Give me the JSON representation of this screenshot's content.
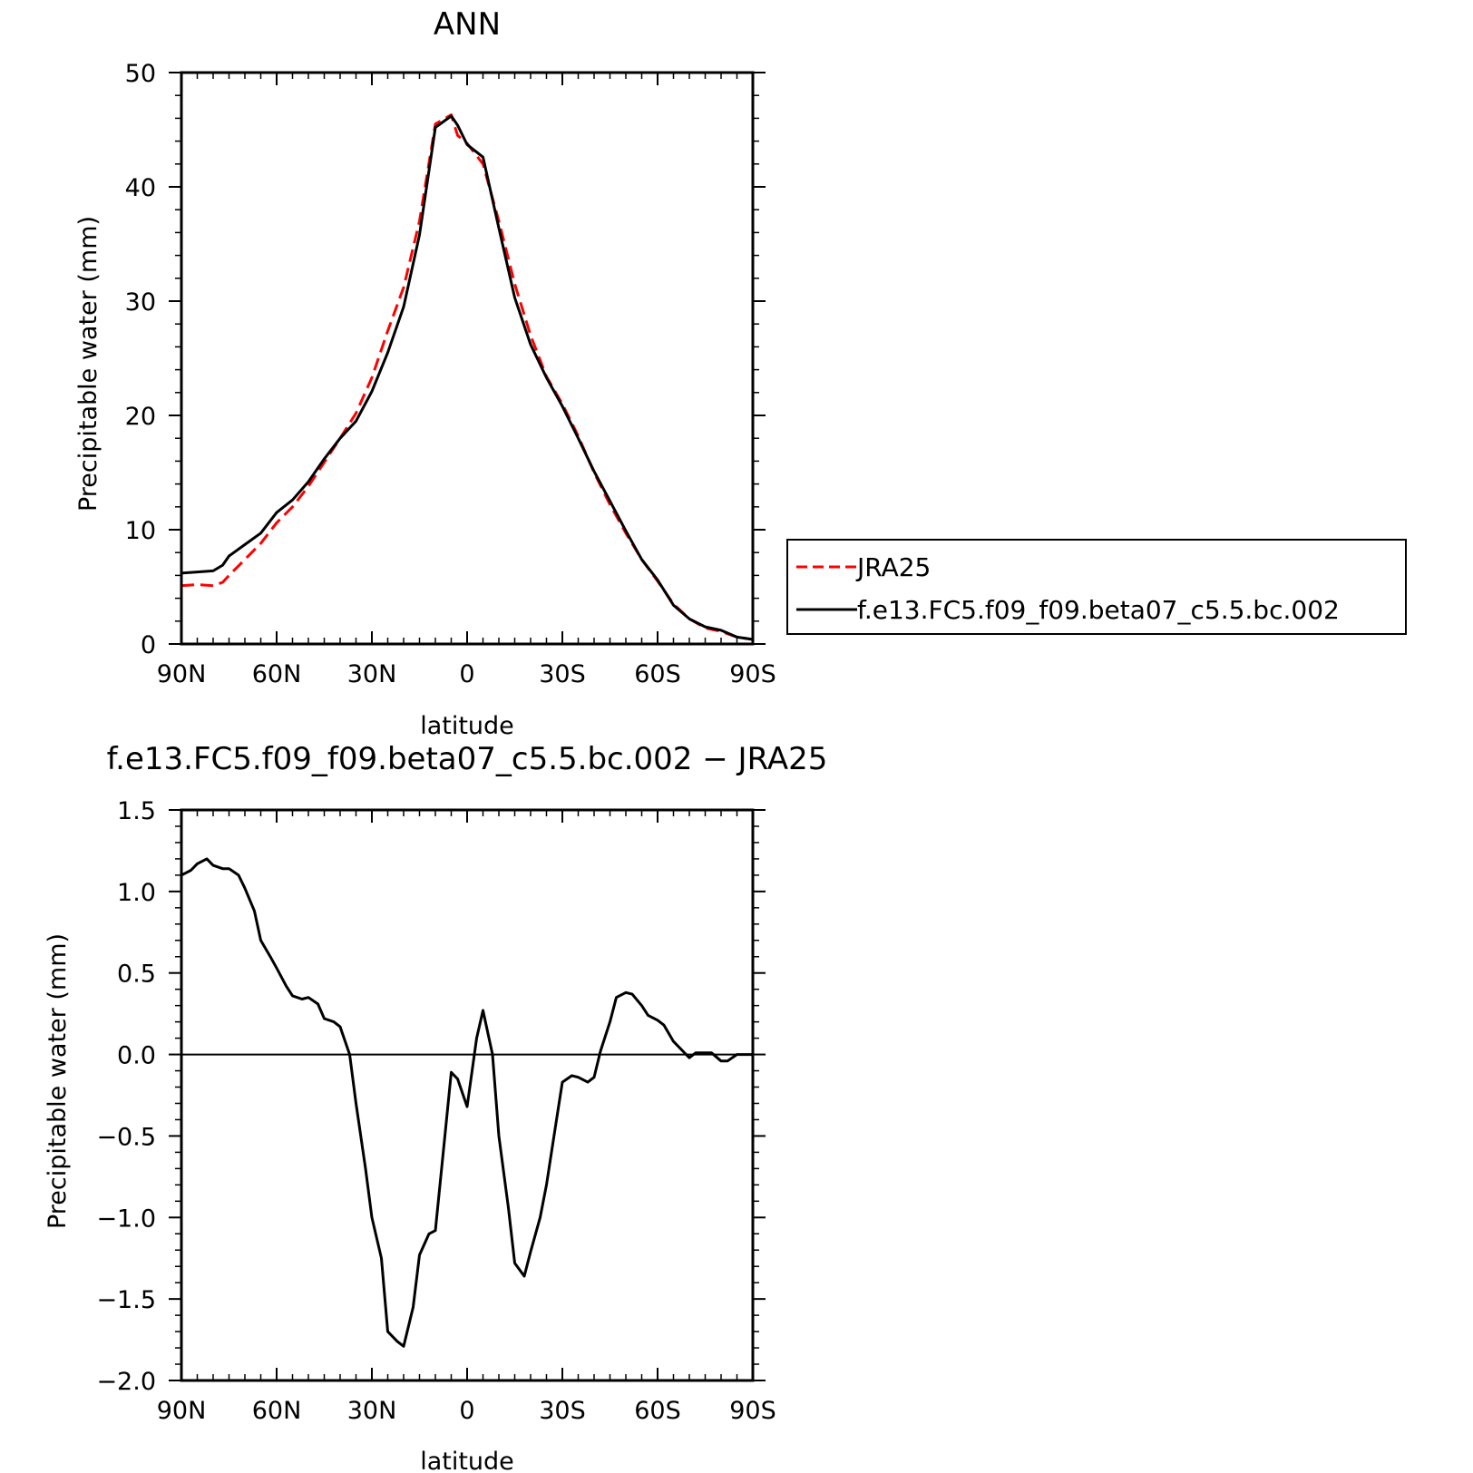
{
  "chart_data": [
    {
      "type": "line",
      "title": "ANN",
      "xlabel": "latitude",
      "ylabel": "Precipitable water (mm)",
      "xlim": [
        90,
        -90
      ],
      "ylim": [
        0,
        50
      ],
      "xticks": [
        90,
        60,
        30,
        0,
        -30,
        -60,
        -90
      ],
      "xtick_labels": [
        "90N",
        "60N",
        "30N",
        "0",
        "30S",
        "60S",
        "90S"
      ],
      "yticks": [
        0,
        10,
        20,
        30,
        40,
        50
      ],
      "ytick_labels": [
        "0",
        "10",
        "20",
        "30",
        "40",
        "50"
      ],
      "legend": {
        "position": "right-middle"
      },
      "x": [
        90,
        85,
        80,
        77,
        75,
        70,
        65,
        60,
        55,
        50,
        45,
        40,
        35,
        30,
        25,
        20,
        15,
        10,
        5,
        3,
        0,
        -5,
        -10,
        -15,
        -20,
        -25,
        -30,
        -35,
        -40,
        -45,
        -50,
        -55,
        -60,
        -65,
        -70,
        -75,
        -80,
        -85,
        -90
      ],
      "series": [
        {
          "name": "JRA25",
          "color": "#ff0000",
          "dash": true,
          "values": [
            5.1,
            5.2,
            5.1,
            5.4,
            6.0,
            7.4,
            8.8,
            10.6,
            12.0,
            13.8,
            15.9,
            18.0,
            20.2,
            23.3,
            27.4,
            31.2,
            37.0,
            45.5,
            46.3,
            44.5,
            43.8,
            42.0,
            37.0,
            31.5,
            27.0,
            23.4,
            21.0,
            18.2,
            15.0,
            12.2,
            9.7,
            7.4,
            5.5,
            3.5,
            2.2,
            1.4,
            1.1,
            0.6,
            0.4
          ]
        },
        {
          "name": "f.e13.FC5.f09_f09.beta07_c5.5.bc.002",
          "color": "#000000",
          "dash": false,
          "values": [
            6.2,
            6.3,
            6.4,
            6.9,
            7.7,
            8.7,
            9.7,
            11.5,
            12.6,
            14.2,
            16.2,
            18.0,
            19.5,
            22.1,
            25.5,
            29.5,
            35.8,
            45.2,
            46.2,
            45.4,
            43.7,
            42.6,
            36.4,
            30.3,
            26.2,
            23.3,
            20.8,
            18.0,
            15.1,
            12.5,
            9.9,
            7.4,
            5.6,
            3.4,
            2.2,
            1.5,
            1.2,
            0.6,
            0.4
          ]
        }
      ]
    },
    {
      "type": "line",
      "title": "f.e13.FC5.f09_f09.beta07_c5.5.bc.002 − JRA25",
      "xlabel": "latitude",
      "ylabel": "Precipitable water (mm)",
      "xlim": [
        90,
        -90
      ],
      "ylim": [
        -2.0,
        1.5
      ],
      "xticks": [
        90,
        60,
        30,
        0,
        -30,
        -60,
        -90
      ],
      "xtick_labels": [
        "90N",
        "60N",
        "30N",
        "0",
        "30S",
        "60S",
        "90S"
      ],
      "yticks": [
        1.5,
        1.0,
        0.5,
        0.0,
        -0.5,
        -1.0,
        -1.5,
        -2.0
      ],
      "ytick_labels": [
        "1.5",
        "1.0",
        "0.5",
        "0.0",
        "−0.5",
        "−1.0",
        "−1.5",
        "−2.0"
      ],
      "zero_line": true,
      "x": [
        90,
        87,
        85,
        82,
        80,
        77,
        75,
        72,
        70,
        67,
        65,
        62,
        60,
        57,
        55,
        52,
        50,
        47,
        45,
        42,
        40,
        37,
        35,
        32,
        30,
        27,
        25,
        22,
        20,
        17,
        15,
        12,
        10,
        7,
        5,
        3,
        0,
        -3,
        -5,
        -8,
        -10,
        -13,
        -15,
        -18,
        -20,
        -23,
        -25,
        -28,
        -30,
        -33,
        -35,
        -38,
        -40,
        -42,
        -45,
        -47,
        -50,
        -52,
        -55,
        -57,
        -60,
        -62,
        -65,
        -68,
        -70,
        -72,
        -75,
        -77,
        -80,
        -82,
        -85,
        -87,
        -90
      ],
      "series": [
        {
          "name": "",
          "color": "#000000",
          "dash": false,
          "values": [
            1.1,
            1.13,
            1.17,
            1.2,
            1.16,
            1.14,
            1.14,
            1.1,
            1.02,
            0.88,
            0.7,
            0.6,
            0.53,
            0.42,
            0.36,
            0.34,
            0.35,
            0.31,
            0.22,
            0.2,
            0.17,
            0.0,
            -0.3,
            -0.7,
            -1.0,
            -1.25,
            -1.7,
            -1.76,
            -1.79,
            -1.55,
            -1.23,
            -1.1,
            -1.08,
            -0.5,
            -0.11,
            -0.15,
            -0.32,
            0.1,
            0.27,
            0.0,
            -0.5,
            -0.94,
            -1.28,
            -1.36,
            -1.21,
            -1.0,
            -0.8,
            -0.42,
            -0.17,
            -0.13,
            -0.14,
            -0.17,
            -0.14,
            0.02,
            0.2,
            0.35,
            0.38,
            0.37,
            0.3,
            0.24,
            0.21,
            0.18,
            0.08,
            0.02,
            -0.02,
            0.01,
            0.01,
            0.01,
            -0.04,
            -0.04,
            0.0,
            0.0,
            0.0
          ]
        }
      ]
    }
  ]
}
